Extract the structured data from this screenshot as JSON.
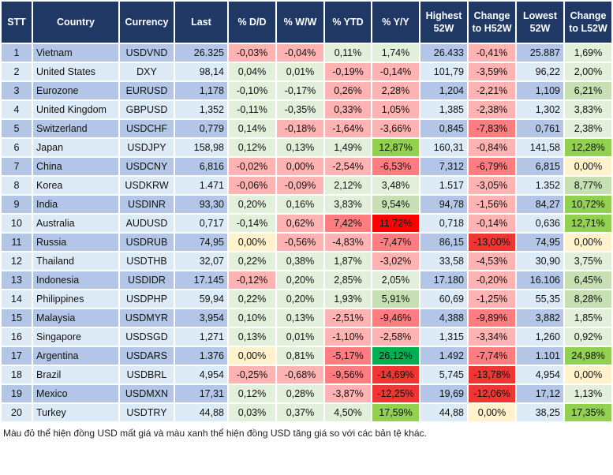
{
  "headers": [
    "STT",
    "Country",
    "Currency",
    "Last",
    "% D/D",
    "% W/W",
    "% YTD",
    "% Y/Y",
    "Highest 52W",
    "Change to H52W",
    "Lowest 52W",
    "Change to L52W"
  ],
  "colors": {
    "g1": "#e2efda",
    "g2": "#c6e0b4",
    "g3": "#92d050",
    "g4": "#00b050",
    "y": "#fff2cc",
    "r1": "#ffb3b3",
    "r2": "#ff7c80",
    "r3": "#f03535",
    "r4": "#ff0000",
    "header": "#203864",
    "band_dark": "#b4c6e7",
    "band_light": "#ddebf7"
  },
  "rows": [
    {
      "stt": "1",
      "country": "Vietnam",
      "currency": "USDVND",
      "last": "26.325",
      "dd": "-0,03%",
      "ww": "-0,04%",
      "ytd": "0,11%",
      "yy": "1,74%",
      "high": "26.433",
      "chg_high": "-0,41%",
      "low": "25.887",
      "chg_low": "1,69%",
      "shade": [
        "r1",
        "r1",
        "g1",
        "g1",
        "r1",
        "g1"
      ]
    },
    {
      "stt": "2",
      "country": "United States",
      "currency": "DXY",
      "last": "98,14",
      "dd": "0,04%",
      "ww": "0,01%",
      "ytd": "-0,19%",
      "yy": "-0,14%",
      "high": "101,79",
      "chg_high": "-3,59%",
      "low": "96,22",
      "chg_low": "2,00%",
      "shade": [
        "g1",
        "g1",
        "r1",
        "r1",
        "r1",
        "g1"
      ]
    },
    {
      "stt": "3",
      "country": "Eurozone",
      "currency": "EURUSD",
      "last": "1,178",
      "dd": "-0,10%",
      "ww": "-0,17%",
      "ytd": "0,26%",
      "yy": "2,28%",
      "high": "1,204",
      "chg_high": "-2,21%",
      "low": "1,109",
      "chg_low": "6,21%",
      "shade": [
        "g1",
        "g1",
        "r1",
        "r1",
        "r1",
        "g2"
      ]
    },
    {
      "stt": "4",
      "country": "United Kingdom",
      "currency": "GBPUSD",
      "last": "1,352",
      "dd": "-0,11%",
      "ww": "-0,35%",
      "ytd": "0,33%",
      "yy": "1,05%",
      "high": "1,385",
      "chg_high": "-2,38%",
      "low": "1,302",
      "chg_low": "3,83%",
      "shade": [
        "g1",
        "g1",
        "r1",
        "r1",
        "r1",
        "g1"
      ]
    },
    {
      "stt": "5",
      "country": "Switzerland",
      "currency": "USDCHF",
      "last": "0,779",
      "dd": "0,14%",
      "ww": "-0,18%",
      "ytd": "-1,64%",
      "yy": "-3,66%",
      "high": "0,845",
      "chg_high": "-7,83%",
      "low": "0,761",
      "chg_low": "2,38%",
      "shade": [
        "g1",
        "r1",
        "r1",
        "r1",
        "r2",
        "g1"
      ]
    },
    {
      "stt": "6",
      "country": "Japan",
      "currency": "USDJPY",
      "last": "158,98",
      "dd": "0,12%",
      "ww": "0,13%",
      "ytd": "1,49%",
      "yy": "12,87%",
      "high": "160,31",
      "chg_high": "-0,84%",
      "low": "141,58",
      "chg_low": "12,28%",
      "shade": [
        "g1",
        "g1",
        "g1",
        "g3",
        "r1",
        "g3"
      ]
    },
    {
      "stt": "7",
      "country": "China",
      "currency": "USDCNY",
      "last": "6,816",
      "dd": "-0,02%",
      "ww": "0,00%",
      "ytd": "-2,54%",
      "yy": "-6,53%",
      "high": "7,312",
      "chg_high": "-6,79%",
      "low": "6,815",
      "chg_low": "0,00%",
      "shade": [
        "r1",
        "r1",
        "r1",
        "r2",
        "r2",
        "y"
      ]
    },
    {
      "stt": "8",
      "country": "Korea",
      "currency": "USDKRW",
      "last": "1.471",
      "dd": "-0,06%",
      "ww": "-0,09%",
      "ytd": "2,12%",
      "yy": "3,48%",
      "high": "1.517",
      "chg_high": "-3,05%",
      "low": "1.352",
      "chg_low": "8,77%",
      "shade": [
        "r1",
        "r1",
        "g1",
        "g1",
        "r1",
        "g2"
      ]
    },
    {
      "stt": "9",
      "country": "India",
      "currency": "USDINR",
      "last": "93,30",
      "dd": "0,20%",
      "ww": "0,16%",
      "ytd": "3,83%",
      "yy": "9,54%",
      "high": "94,78",
      "chg_high": "-1,56%",
      "low": "84,27",
      "chg_low": "10,72%",
      "shade": [
        "g1",
        "g1",
        "g1",
        "g2",
        "r1",
        "g3"
      ]
    },
    {
      "stt": "10",
      "country": "Australia",
      "currency": "AUDUSD",
      "last": "0,717",
      "dd": "-0,14%",
      "ww": "0,62%",
      "ytd": "7,42%",
      "yy": "11,72%",
      "high": "0,718",
      "chg_high": "-0,14%",
      "low": "0,636",
      "chg_low": "12,71%",
      "shade": [
        "g1",
        "r1",
        "r2",
        "r4",
        "r1",
        "g3"
      ]
    },
    {
      "stt": "11",
      "country": "Russia",
      "currency": "USDRUB",
      "last": "74,95",
      "dd": "0,00%",
      "ww": "-0,56%",
      "ytd": "-4,83%",
      "yy": "-7,47%",
      "high": "86,15",
      "chg_high": "-13,00%",
      "low": "74,95",
      "chg_low": "0,00%",
      "shade": [
        "y",
        "r1",
        "r1",
        "r2",
        "r3",
        "y"
      ]
    },
    {
      "stt": "12",
      "country": "Thailand",
      "currency": "USDTHB",
      "last": "32,07",
      "dd": "0,22%",
      "ww": "0,38%",
      "ytd": "1,87%",
      "yy": "-3,02%",
      "high": "33,58",
      "chg_high": "-4,53%",
      "low": "30,90",
      "chg_low": "3,75%",
      "shade": [
        "g1",
        "g1",
        "g1",
        "r1",
        "r1",
        "g1"
      ]
    },
    {
      "stt": "13",
      "country": "Indonesia",
      "currency": "USDIDR",
      "last": "17.145",
      "dd": "-0,12%",
      "ww": "0,20%",
      "ytd": "2,85%",
      "yy": "2,05%",
      "high": "17.180",
      "chg_high": "-0,20%",
      "low": "16.106",
      "chg_low": "6,45%",
      "shade": [
        "r1",
        "g1",
        "g1",
        "g1",
        "r1",
        "g2"
      ]
    },
    {
      "stt": "14",
      "country": "Philippines",
      "currency": "USDPHP",
      "last": "59,94",
      "dd": "0,22%",
      "ww": "0,20%",
      "ytd": "1,93%",
      "yy": "5,91%",
      "high": "60,69",
      "chg_high": "-1,25%",
      "low": "55,35",
      "chg_low": "8,28%",
      "shade": [
        "g1",
        "g1",
        "g1",
        "g2",
        "r1",
        "g2"
      ]
    },
    {
      "stt": "15",
      "country": "Malaysia",
      "currency": "USDMYR",
      "last": "3,954",
      "dd": "0,10%",
      "ww": "0,13%",
      "ytd": "-2,51%",
      "yy": "-9,46%",
      "high": "4,388",
      "chg_high": "-9,89%",
      "low": "3,882",
      "chg_low": "1,85%",
      "shade": [
        "g1",
        "g1",
        "r1",
        "r2",
        "r2",
        "g1"
      ]
    },
    {
      "stt": "16",
      "country": "Singapore",
      "currency": "USDSGD",
      "last": "1,271",
      "dd": "0,13%",
      "ww": "0,01%",
      "ytd": "-1,10%",
      "yy": "-2,58%",
      "high": "1,315",
      "chg_high": "-3,34%",
      "low": "1,260",
      "chg_low": "0,92%",
      "shade": [
        "g1",
        "g1",
        "r1",
        "r1",
        "r1",
        "g1"
      ]
    },
    {
      "stt": "17",
      "country": "Argentina",
      "currency": "USDARS",
      "last": "1.376",
      "dd": "0,00%",
      "ww": "0,81%",
      "ytd": "-5,17%",
      "yy": "26,12%",
      "high": "1.492",
      "chg_high": "-7,74%",
      "low": "1.101",
      "chg_low": "24,98%",
      "shade": [
        "y",
        "g1",
        "r2",
        "g4",
        "r2",
        "g3"
      ]
    },
    {
      "stt": "18",
      "country": "Brazil",
      "currency": "USDBRL",
      "last": "4,954",
      "dd": "-0,25%",
      "ww": "-0,68%",
      "ytd": "-9,56%",
      "yy": "-14,69%",
      "high": "5,745",
      "chg_high": "-13,78%",
      "low": "4,954",
      "chg_low": "0,00%",
      "shade": [
        "r1",
        "r1",
        "r2",
        "r3",
        "r3",
        "y"
      ]
    },
    {
      "stt": "19",
      "country": "Mexico",
      "currency": "USDMXN",
      "last": "17,31",
      "dd": "0,12%",
      "ww": "0,28%",
      "ytd": "-3,87%",
      "yy": "-12,25%",
      "high": "19,69",
      "chg_high": "-12,06%",
      "low": "17,12",
      "chg_low": "1,13%",
      "shade": [
        "g1",
        "g1",
        "r1",
        "r3",
        "r3",
        "g1"
      ]
    },
    {
      "stt": "20",
      "country": "Turkey",
      "currency": "USDTRY",
      "last": "44,88",
      "dd": "0,03%",
      "ww": "0,37%",
      "ytd": "4,50%",
      "yy": "17,59%",
      "high": "44,88",
      "chg_high": "0,00%",
      "low": "38,25",
      "chg_low": "17,35%",
      "shade": [
        "g1",
        "g1",
        "g1",
        "g3",
        "y",
        "g3"
      ]
    }
  ],
  "footnote": "Màu đỏ thể hiện đồng USD mất giá và màu xanh thể hiện đồng USD tăng giá so với các bản tệ khác."
}
